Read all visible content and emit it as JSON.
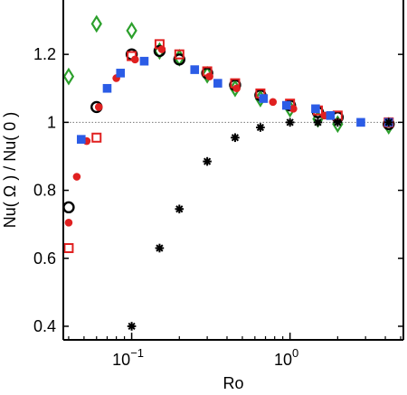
{
  "chart_data": {
    "type": "scatter",
    "title": "",
    "xlabel": "Ro",
    "ylabel": "Nu( Ω ) / Nu( 0 )",
    "xscale": "log",
    "xlim": [
      0.037,
      5.2
    ],
    "ylim": [
      0.36,
      1.36
    ],
    "grid": false,
    "legend": "none",
    "xticks": [
      {
        "value": 0.1,
        "base": "10",
        "exp": "−1"
      },
      {
        "value": 1,
        "base": "10",
        "exp": "0"
      }
    ],
    "yticks": [
      {
        "value": 0.4,
        "label": "0.4"
      },
      {
        "value": 0.6,
        "label": "0.6"
      },
      {
        "value": 0.8,
        "label": "0.8"
      },
      {
        "value": 1.0,
        "label": "1"
      },
      {
        "value": 1.2,
        "label": "1.2"
      }
    ],
    "reference_line": {
      "y": 1.0,
      "style": "dotted",
      "color": "#777777"
    },
    "series": [
      {
        "marker": "diamond-open",
        "color": "#2ca02c",
        "x": [
          0.04,
          0.06,
          0.1,
          0.15,
          0.2,
          0.3,
          0.45,
          0.65,
          1.0,
          1.5,
          2.0,
          4.2
        ],
        "y": [
          1.135,
          1.29,
          1.27,
          1.21,
          1.19,
          1.14,
          1.1,
          1.07,
          1.04,
          1.01,
          0.995,
          0.99
        ]
      },
      {
        "marker": "circle-open",
        "color": "#000000",
        "x": [
          0.04,
          0.06,
          0.1,
          0.15,
          0.2,
          0.3,
          0.45,
          0.65,
          1.0,
          1.5,
          2.0,
          4.2
        ],
        "y": [
          0.75,
          1.045,
          1.2,
          1.21,
          1.185,
          1.145,
          1.11,
          1.08,
          1.05,
          1.03,
          1.015,
          0.995
        ]
      },
      {
        "marker": "square-open",
        "color": "#e02020",
        "x": [
          0.04,
          0.06,
          0.1,
          0.15,
          0.2,
          0.3,
          0.45,
          0.65,
          1.0,
          1.5,
          2.0,
          4.2
        ],
        "y": [
          0.63,
          0.955,
          1.195,
          1.23,
          1.2,
          1.15,
          1.115,
          1.085,
          1.055,
          1.035,
          1.02,
          1.0
        ]
      },
      {
        "marker": "circle-filled",
        "color": "#e02020",
        "x": [
          0.04,
          0.045,
          0.052,
          0.062,
          0.08,
          0.105,
          0.155,
          0.31,
          0.46,
          0.78,
          1.05,
          1.65,
          4.2
        ],
        "y": [
          0.705,
          0.84,
          0.945,
          1.045,
          1.13,
          1.185,
          1.215,
          1.135,
          1.1,
          1.06,
          1.04,
          1.02,
          1.0
        ]
      },
      {
        "marker": "square-filled",
        "color": "#2b5ce6",
        "x": [
          0.048,
          0.07,
          0.085,
          0.12,
          0.25,
          0.35,
          0.68,
          0.95,
          1.45,
          1.8,
          2.8,
          4.2
        ],
        "y": [
          0.95,
          1.1,
          1.145,
          1.18,
          1.155,
          1.115,
          1.07,
          1.05,
          1.04,
          1.02,
          1.0,
          1.0
        ]
      },
      {
        "marker": "asterisk",
        "color": "#000000",
        "x": [
          0.1,
          0.15,
          0.2,
          0.3,
          0.45,
          0.65,
          1.0,
          1.5,
          2.0,
          4.2
        ],
        "y": [
          0.4,
          0.63,
          0.745,
          0.885,
          0.955,
          0.985,
          1.0,
          1.0,
          1.0,
          1.0
        ]
      }
    ]
  }
}
